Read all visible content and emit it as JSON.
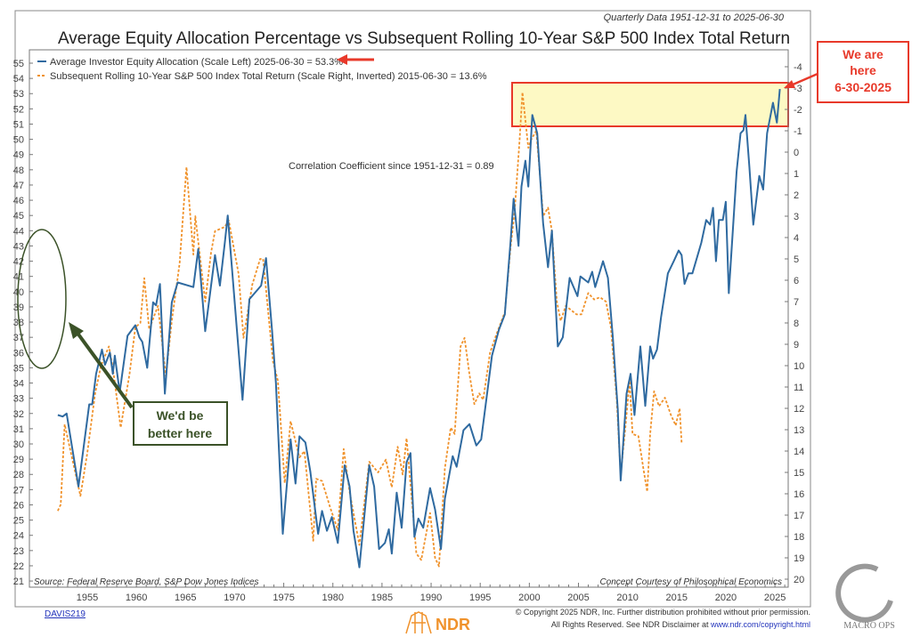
{
  "header": {
    "quarterly_note": "Quarterly Data 1951-12-31 to 2025-06-30",
    "title": "Average Equity Allocation Percentage vs Subsequent Rolling 10-Year S&P 500 Index Total Return"
  },
  "annotations": {
    "correlation": "Correlation Coefficient since 1951-12-31 = 0.89",
    "source": "Source:  Federal Reserve Board, S&P Dow Jones Indices",
    "concept": "Concept Courtesy of Philosophical Economics",
    "we_are_here": [
      "We are",
      "here",
      "6-30-2025"
    ],
    "better_here": [
      "We'd be",
      "better here"
    ]
  },
  "footer": {
    "code": "DAVIS219",
    "copyright_1": "© Copyright 2025 NDR, Inc. Further distribution prohibited without prior permission.",
    "copyright_2": "All Rights Reserved. See NDR Disclaimer at ",
    "copyright_link": "www.ndr.com/copyright.html",
    "ndr_logo": "NDR",
    "macro_ops_logo": "MACRO OPS"
  },
  "colors": {
    "blue": "#2f6aa0",
    "orange": "#f0922b",
    "red": "#e8392a",
    "green": "#3b5228",
    "highlight": "#fdf9c4"
  },
  "chart_data": {
    "type": "line",
    "title": "Average Equity Allocation Percentage vs Subsequent Rolling 10-Year S&P 500 Index Total Return",
    "x_ticks": [
      1955,
      1960,
      1965,
      1970,
      1975,
      1980,
      1985,
      1990,
      1995,
      2000,
      2005,
      2010,
      2015,
      2020,
      2025
    ],
    "xlim": [
      1951.75,
      2026.3
    ],
    "y_left": {
      "label": "Average Investor Equity Allocation (%)",
      "ylim": [
        21,
        55
      ],
      "ticks": [
        21,
        22,
        23,
        24,
        25,
        26,
        27,
        28,
        29,
        30,
        31,
        32,
        33,
        34,
        35,
        36,
        37,
        38,
        39,
        40,
        41,
        42,
        43,
        44,
        45,
        46,
        47,
        48,
        49,
        50,
        51,
        52,
        53,
        54,
        55
      ]
    },
    "y_right": {
      "label": "Subsequent Rolling 10-Year Total Return (%) inverted",
      "ylim": [
        -4,
        20
      ],
      "inverted": true,
      "ticks": [
        -4,
        -3,
        -2,
        -1,
        0,
        1,
        2,
        3,
        4,
        5,
        6,
        7,
        8,
        9,
        10,
        11,
        12,
        13,
        14,
        15,
        16,
        17,
        18,
        19,
        20
      ]
    },
    "series": [
      {
        "name": "Average Investor Equity Allocation (Scale Left) 2025-06-30 = 53.3%",
        "axis": "left",
        "points": [
          [
            1952.0,
            31.9
          ],
          [
            1952.5,
            31.8
          ],
          [
            1952.9,
            32.0
          ],
          [
            1954.1,
            27.2
          ],
          [
            1955.2,
            32.6
          ],
          [
            1955.5,
            32.6
          ],
          [
            1955.9,
            34.6
          ],
          [
            1956.5,
            36.2
          ],
          [
            1956.8,
            35.2
          ],
          [
            1957.3,
            36.0
          ],
          [
            1957.6,
            34.6
          ],
          [
            1957.8,
            35.8
          ],
          [
            1958.3,
            33.4
          ],
          [
            1959.1,
            37.1
          ],
          [
            1959.9,
            37.8
          ],
          [
            1960.3,
            37.0
          ],
          [
            1960.6,
            36.7
          ],
          [
            1961.1,
            35.0
          ],
          [
            1961.7,
            39.3
          ],
          [
            1962.0,
            39.1
          ],
          [
            1962.4,
            40.5
          ],
          [
            1962.9,
            33.3
          ],
          [
            1963.6,
            39.3
          ],
          [
            1964.2,
            40.6
          ],
          [
            1965.8,
            40.3
          ],
          [
            1966.3,
            42.8
          ],
          [
            1967.0,
            37.4
          ],
          [
            1968.0,
            42.4
          ],
          [
            1968.5,
            40.4
          ],
          [
            1969.0,
            43.2
          ],
          [
            1969.3,
            45.0
          ],
          [
            1970.8,
            32.9
          ],
          [
            1971.5,
            39.5
          ],
          [
            1972.7,
            40.4
          ],
          [
            1973.2,
            42.2
          ],
          [
            1973.8,
            37.5
          ],
          [
            1974.2,
            34.0
          ],
          [
            1974.9,
            24.1
          ],
          [
            1975.7,
            30.3
          ],
          [
            1976.2,
            27.4
          ],
          [
            1976.6,
            30.5
          ],
          [
            1977.2,
            30.1
          ],
          [
            1977.7,
            28.2
          ],
          [
            1978.5,
            24.1
          ],
          [
            1978.9,
            25.6
          ],
          [
            1979.4,
            24.3
          ],
          [
            1979.9,
            25.2
          ],
          [
            1980.5,
            23.5
          ],
          [
            1981.2,
            28.6
          ],
          [
            1981.7,
            27.2
          ],
          [
            1982.1,
            24.3
          ],
          [
            1982.7,
            21.9
          ],
          [
            1983.7,
            28.6
          ],
          [
            1984.2,
            27.2
          ],
          [
            1984.7,
            23.1
          ],
          [
            1985.3,
            23.5
          ],
          [
            1985.7,
            24.4
          ],
          [
            1986.0,
            22.8
          ],
          [
            1986.5,
            26.8
          ],
          [
            1987.0,
            24.5
          ],
          [
            1987.5,
            28.8
          ],
          [
            1987.9,
            29.4
          ],
          [
            1988.3,
            23.9
          ],
          [
            1988.7,
            25.1
          ],
          [
            1989.2,
            24.5
          ],
          [
            1989.9,
            27.1
          ],
          [
            1990.4,
            25.7
          ],
          [
            1991.0,
            23.1
          ],
          [
            1991.4,
            26.4
          ],
          [
            1992.2,
            29.2
          ],
          [
            1992.6,
            28.5
          ],
          [
            1993.3,
            30.9
          ],
          [
            1993.9,
            31.3
          ],
          [
            1994.6,
            29.9
          ],
          [
            1995.1,
            30.3
          ],
          [
            1996.2,
            35.8
          ],
          [
            1996.9,
            37.5
          ],
          [
            1997.5,
            38.5
          ],
          [
            1998.1,
            43.4
          ],
          [
            1998.4,
            46.1
          ],
          [
            1998.9,
            43.0
          ],
          [
            1999.2,
            46.9
          ],
          [
            1999.6,
            48.6
          ],
          [
            1999.9,
            46.9
          ],
          [
            2000.3,
            51.6
          ],
          [
            2000.8,
            50.4
          ],
          [
            2001.4,
            44.5
          ],
          [
            2001.9,
            41.6
          ],
          [
            2002.3,
            44.0
          ],
          [
            2002.9,
            36.4
          ],
          [
            2003.4,
            37.0
          ],
          [
            2004.1,
            40.9
          ],
          [
            2004.9,
            39.7
          ],
          [
            2005.2,
            41.0
          ],
          [
            2006.0,
            40.6
          ],
          [
            2006.4,
            41.3
          ],
          [
            2006.7,
            40.3
          ],
          [
            2007.5,
            42.0
          ],
          [
            2008.0,
            40.9
          ],
          [
            2008.5,
            37.0
          ],
          [
            2009.0,
            32.3
          ],
          [
            2009.3,
            27.6
          ],
          [
            2009.9,
            33.3
          ],
          [
            2010.3,
            34.6
          ],
          [
            2010.7,
            31.9
          ],
          [
            2011.3,
            36.4
          ],
          [
            2011.8,
            32.5
          ],
          [
            2012.3,
            36.4
          ],
          [
            2012.6,
            35.6
          ],
          [
            2013.0,
            36.2
          ],
          [
            2013.4,
            38.3
          ],
          [
            2014.1,
            41.2
          ],
          [
            2014.7,
            42.0
          ],
          [
            2015.2,
            42.7
          ],
          [
            2015.5,
            42.4
          ],
          [
            2015.8,
            40.5
          ],
          [
            2016.2,
            41.2
          ],
          [
            2016.6,
            41.2
          ],
          [
            2017.5,
            43.2
          ],
          [
            2018.0,
            44.7
          ],
          [
            2018.4,
            44.4
          ],
          [
            2018.7,
            45.5
          ],
          [
            2019.0,
            42.0
          ],
          [
            2019.3,
            44.7
          ],
          [
            2019.7,
            44.7
          ],
          [
            2020.0,
            45.9
          ],
          [
            2020.3,
            39.9
          ],
          [
            2021.1,
            47.9
          ],
          [
            2021.5,
            50.4
          ],
          [
            2021.8,
            50.6
          ],
          [
            2022.0,
            51.6
          ],
          [
            2022.4,
            48.2
          ],
          [
            2022.8,
            44.4
          ],
          [
            2023.4,
            47.6
          ],
          [
            2023.8,
            46.7
          ],
          [
            2024.2,
            50.4
          ],
          [
            2024.8,
            52.4
          ],
          [
            2025.2,
            51.1
          ],
          [
            2025.5,
            53.3
          ]
        ]
      },
      {
        "name": "Subsequent Rolling 10-Year S&P 500 Index Total Return (Scale Right, Inverted) 2015-06-30 = 13.6%",
        "axis": "right",
        "points": [
          [
            1952.0,
            16.8
          ],
          [
            1952.3,
            16.5
          ],
          [
            1952.7,
            12.75
          ],
          [
            1954.3,
            16.1
          ],
          [
            1955.0,
            14.1
          ],
          [
            1955.8,
            11.3
          ],
          [
            1956.4,
            10.0
          ],
          [
            1957.2,
            9.1
          ],
          [
            1957.6,
            10.1
          ],
          [
            1958.4,
            12.9
          ],
          [
            1959.3,
            10.4
          ],
          [
            1959.9,
            8.2
          ],
          [
            1960.4,
            8.0
          ],
          [
            1960.8,
            5.9
          ],
          [
            1961.3,
            8.3
          ],
          [
            1962.2,
            7.2
          ],
          [
            1963.0,
            10.5
          ],
          [
            1963.6,
            7.9
          ],
          [
            1964.4,
            5.2
          ],
          [
            1965.1,
            0.7
          ],
          [
            1965.8,
            4.8
          ],
          [
            1966.0,
            3.0
          ],
          [
            1967.0,
            7.0
          ],
          [
            1967.6,
            4.7
          ],
          [
            1968.0,
            3.7
          ],
          [
            1969.0,
            3.5
          ],
          [
            1969.4,
            3.2
          ],
          [
            1970.4,
            5.7
          ],
          [
            1970.9,
            8.7
          ],
          [
            1971.8,
            6.2
          ],
          [
            1972.6,
            5.0
          ],
          [
            1972.9,
            5.0
          ],
          [
            1973.9,
            9.8
          ],
          [
            1974.4,
            10.7
          ],
          [
            1975.1,
            15.5
          ],
          [
            1975.7,
            12.6
          ],
          [
            1976.6,
            14.3
          ],
          [
            1977.1,
            14.0
          ],
          [
            1978.0,
            18.2
          ],
          [
            1978.3,
            15.3
          ],
          [
            1978.9,
            15.4
          ],
          [
            1979.7,
            16.6
          ],
          [
            1980.5,
            17.7
          ],
          [
            1981.1,
            13.9
          ],
          [
            1981.7,
            15.9
          ],
          [
            1982.7,
            18.4
          ],
          [
            1983.7,
            14.5
          ],
          [
            1984.6,
            15.0
          ],
          [
            1985.4,
            14.4
          ],
          [
            1986.0,
            15.7
          ],
          [
            1986.6,
            13.8
          ],
          [
            1987.1,
            15.1
          ],
          [
            1987.5,
            13.4
          ],
          [
            1988.5,
            18.8
          ],
          [
            1989.0,
            19.1
          ],
          [
            1989.9,
            16.9
          ],
          [
            1990.4,
            19.0
          ],
          [
            1990.8,
            19.4
          ],
          [
            1991.4,
            14.8
          ],
          [
            1992.0,
            12.9
          ],
          [
            1992.4,
            13.2
          ],
          [
            1993.0,
            9.1
          ],
          [
            1993.4,
            8.7
          ],
          [
            1993.9,
            10.4
          ],
          [
            1994.4,
            11.8
          ],
          [
            1994.9,
            11.3
          ],
          [
            1995.3,
            11.6
          ],
          [
            1996.0,
            9.4
          ],
          [
            1996.6,
            8.6
          ],
          [
            1997.5,
            7.5
          ],
          [
            1998.1,
            4.4
          ],
          [
            1998.5,
            2.8
          ],
          [
            1999.0,
            -0.5
          ],
          [
            1999.3,
            -2.8
          ],
          [
            1999.9,
            -0.2
          ],
          [
            2000.2,
            -0.6
          ],
          [
            2000.7,
            -1.0
          ],
          [
            2001.1,
            1.2
          ],
          [
            2001.4,
            3.0
          ],
          [
            2001.9,
            2.6
          ],
          [
            2002.3,
            3.7
          ],
          [
            2002.8,
            7.0
          ],
          [
            2003.2,
            7.9
          ],
          [
            2003.7,
            7.2
          ],
          [
            2004.8,
            7.6
          ],
          [
            2005.3,
            7.6
          ],
          [
            2006.0,
            6.6
          ],
          [
            2006.6,
            6.9
          ],
          [
            2007.2,
            6.8
          ],
          [
            2007.8,
            7.0
          ],
          [
            2008.3,
            8.2
          ],
          [
            2008.9,
            11.6
          ],
          [
            2009.3,
            15.1
          ],
          [
            2009.8,
            12.8
          ],
          [
            2010.2,
            10.7
          ],
          [
            2010.5,
            13.2
          ],
          [
            2011.1,
            13.3
          ],
          [
            2011.6,
            14.8
          ],
          [
            2012.0,
            15.9
          ],
          [
            2012.3,
            13.2
          ],
          [
            2012.7,
            11.2
          ],
          [
            2013.2,
            11.9
          ],
          [
            2013.8,
            11.5
          ],
          [
            2014.4,
            12.3
          ],
          [
            2014.9,
            12.8
          ],
          [
            2015.3,
            12.0
          ],
          [
            2015.5,
            13.6
          ]
        ]
      }
    ]
  }
}
